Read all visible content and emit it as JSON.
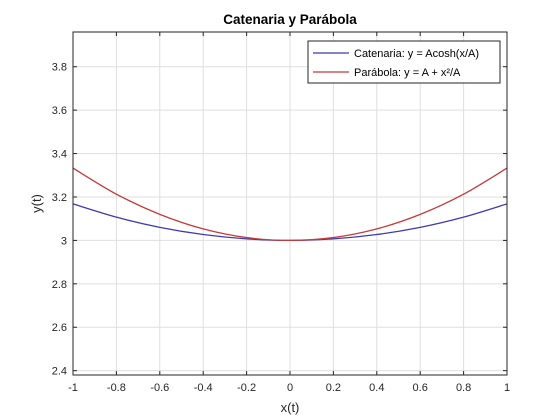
{
  "chart_data": {
    "type": "line",
    "title": "Catenaria y Parábola",
    "xlabel": "x(t)",
    "ylabel": "y(t)",
    "xlim": [
      -1,
      1
    ],
    "ylim": [
      2.38,
      3.96
    ],
    "xticks": [
      "-1",
      "-0.8",
      "-0.6",
      "-0.4",
      "-0.2",
      "0",
      "0.2",
      "0.4",
      "0.6",
      "0.8",
      "1"
    ],
    "xtick_values": [
      -1,
      -0.8,
      -0.6,
      -0.4,
      -0.2,
      0,
      0.2,
      0.4,
      0.6,
      0.8,
      1
    ],
    "yticks": [
      "2.4",
      "2.6",
      "2.8",
      "3",
      "3.2",
      "3.4",
      "3.6",
      "3.8"
    ],
    "ytick_values": [
      2.4,
      2.6,
      2.8,
      3.0,
      3.2,
      3.4,
      3.6,
      3.8
    ],
    "grid": true,
    "legend_position": "top-right",
    "series": [
      {
        "name": "Catenaria: y = Acosh(x/A)",
        "color": "#3b3bb1",
        "x": [
          -1,
          -0.8,
          -0.6,
          -0.4,
          -0.2,
          0,
          0.2,
          0.4,
          0.6,
          0.8,
          1
        ],
        "y": [
          3.168,
          3.107,
          3.06,
          3.027,
          3.007,
          3.0,
          3.007,
          3.027,
          3.06,
          3.107,
          3.168
        ]
      },
      {
        "name": "Parábola: y = A + x²/A",
        "color": "#c23b3b",
        "x": [
          -1,
          -0.8,
          -0.6,
          -0.4,
          -0.2,
          0,
          0.2,
          0.4,
          0.6,
          0.8,
          1
        ],
        "y": [
          3.333,
          3.213,
          3.12,
          3.053,
          3.013,
          3.0,
          3.013,
          3.053,
          3.12,
          3.213,
          3.333
        ]
      }
    ]
  }
}
